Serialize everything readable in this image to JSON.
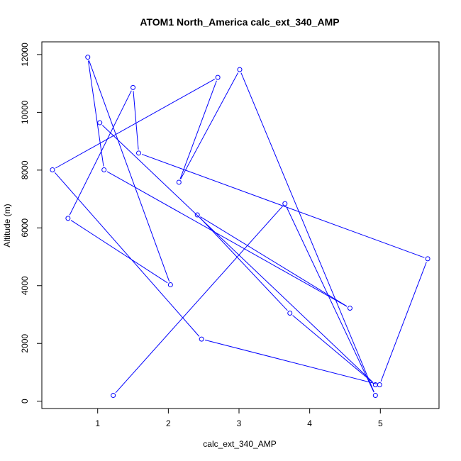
{
  "chart_data": {
    "type": "line",
    "title": "ATOM1 North_America calc_ext_340_AMP",
    "xlabel": "calc_ext_340_AMP",
    "ylabel": "Altitude (m)",
    "xlim": [
      0.21,
      5.83
    ],
    "ylim": [
      -253,
      12440
    ],
    "xticks": [
      1,
      2,
      3,
      4,
      5
    ],
    "yticks": [
      0,
      2000,
      4000,
      6000,
      8000,
      10000,
      12000
    ],
    "grid": false,
    "series": [
      {
        "color": "#0000ff",
        "marker": "open-circle",
        "points": [
          {
            "x": 1.22,
            "y": 200
          },
          {
            "x": 3.65,
            "y": 6840
          },
          {
            "x": 4.93,
            "y": 200
          },
          {
            "x": 3.01,
            "y": 11480
          },
          {
            "x": 2.15,
            "y": 7580
          },
          {
            "x": 2.7,
            "y": 11210
          },
          {
            "x": 0.36,
            "y": 8010
          },
          {
            "x": 2.47,
            "y": 2150
          },
          {
            "x": 4.99,
            "y": 570
          },
          {
            "x": 5.67,
            "y": 4930
          },
          {
            "x": 1.58,
            "y": 8590
          },
          {
            "x": 1.5,
            "y": 10860
          },
          {
            "x": 0.58,
            "y": 6330
          },
          {
            "x": 2.03,
            "y": 4030
          },
          {
            "x": 0.86,
            "y": 11910
          },
          {
            "x": 1.09,
            "y": 8010
          },
          {
            "x": 4.57,
            "y": 3220
          },
          {
            "x": 2.41,
            "y": 6450
          },
          {
            "x": 3.72,
            "y": 3050
          },
          {
            "x": 4.93,
            "y": 570
          },
          {
            "x": 1.03,
            "y": 9640
          }
        ]
      }
    ]
  }
}
